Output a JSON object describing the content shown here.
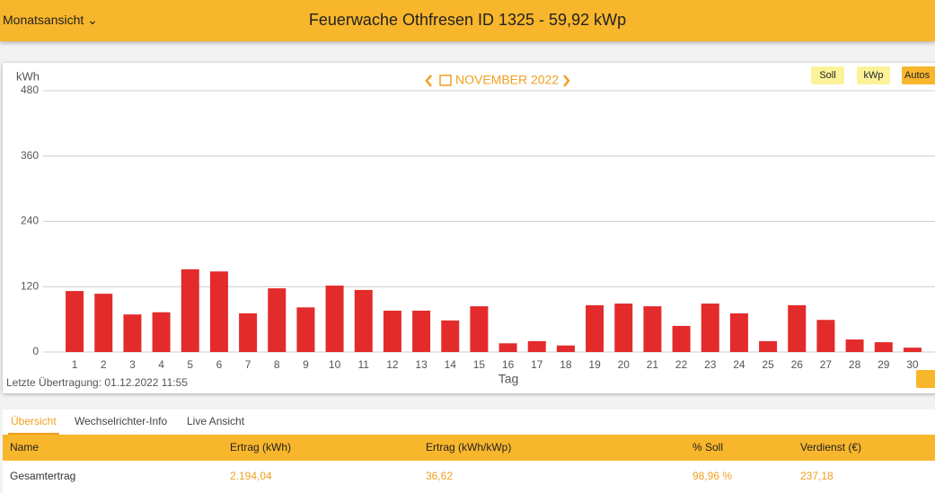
{
  "header": {
    "menu": "Monatsansicht",
    "title": "Feuerwache Othfresen ID 1325 - 59,92 kWp"
  },
  "chart_data": {
    "type": "bar",
    "month": "NOVEMBER 2022",
    "y_label": "kWh",
    "x_label": "Tag",
    "buttons": [
      "Soll",
      "kWp",
      "Autos"
    ],
    "footer": "Letzte Übertragung: 01.12.2022 11:55",
    "categories": [
      "1",
      "2",
      "3",
      "4",
      "5",
      "6",
      "7",
      "8",
      "9",
      "10",
      "11",
      "12",
      "13",
      "14",
      "15",
      "16",
      "17",
      "18",
      "19",
      "20",
      "21",
      "22",
      "23",
      "24",
      "25",
      "26",
      "27",
      "28",
      "29",
      "30"
    ],
    "values": [
      112,
      107,
      69,
      73,
      152,
      148,
      71,
      117,
      82,
      122,
      114,
      76,
      76,
      58,
      84,
      16,
      20,
      12,
      86,
      89,
      84,
      48,
      89,
      71,
      20,
      86,
      59,
      23,
      18,
      8
    ],
    "color": "#e32b2b",
    "ylim": [
      0,
      480
    ],
    "yticks": [
      0,
      120,
      240,
      360,
      480
    ],
    "grid": true
  },
  "tabs": [
    "Übersicht",
    "Wechselrichter-Info",
    "Live Ansicht"
  ],
  "table": {
    "columns": [
      "Name",
      "Ertrag (kWh)",
      "Ertrag (kWh/kWp)",
      "% Soll",
      "Verdienst (€)"
    ],
    "rows": [
      [
        "Gesamtertrag",
        "2.194,04",
        "36,62",
        "98,96 %",
        "237,18"
      ]
    ]
  }
}
